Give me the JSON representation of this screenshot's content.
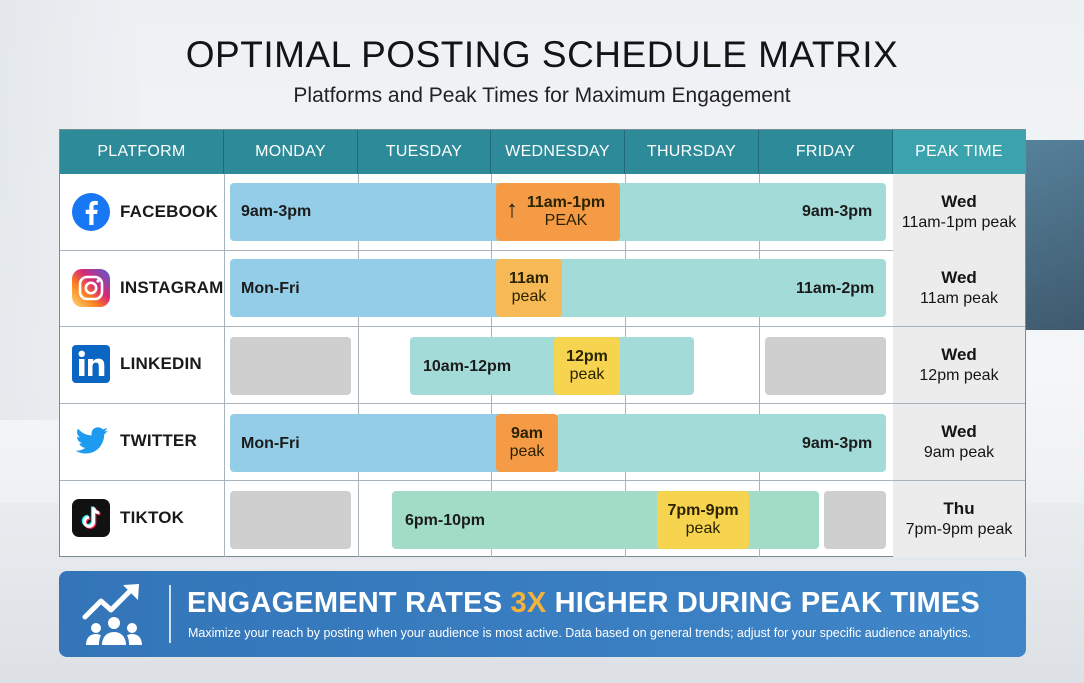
{
  "title": "OPTIMAL POSTING SCHEDULE MATRIX",
  "subtitle": "Platforms and Peak Times for Maximum Engagement",
  "headers": {
    "platform": "PLATFORM",
    "days": [
      "MONDAY",
      "TUESDAY",
      "WEDNESDAY",
      "THURSDAY",
      "FRIDAY"
    ],
    "peak": "PEAK TIME"
  },
  "rows": [
    {
      "name": "FACEBOOK",
      "icon": "facebook-icon",
      "left_label": "9am-3pm",
      "right_label": "9am-3pm",
      "peak_box": {
        "line1": "11am-1pm",
        "line2": "PEAK"
      },
      "peak_day": "Wed",
      "peak_time": "11am-1pm peak"
    },
    {
      "name": "INSTAGRAM",
      "icon": "instagram-icon",
      "left_label": "Mon-Fri",
      "right_label": "11am-2pm",
      "peak_box": {
        "line1": "11am",
        "line2": "peak"
      },
      "peak_day": "Wed",
      "peak_time": "11am peak"
    },
    {
      "name": "LINKEDIN",
      "icon": "linkedin-icon",
      "left_label": "10am-12pm",
      "peak_box": {
        "line1": "12pm",
        "line2": "peak"
      },
      "peak_day": "Wed",
      "peak_time": "12pm peak"
    },
    {
      "name": "TWITTER",
      "icon": "twitter-bird-icon",
      "left_label": "Mon-Fri",
      "right_label": "9am-3pm",
      "peak_box": {
        "line1": "9am",
        "line2": "peak"
      },
      "peak_day": "Wed",
      "peak_time": "9am peak"
    },
    {
      "name": "TIKTOK",
      "icon": "tiktok-icon",
      "left_label": "6pm-10pm",
      "peak_box": {
        "line1": "7pm-9pm",
        "line2": "peak"
      },
      "peak_day": "Thu",
      "peak_time": "7pm-9pm peak"
    }
  ],
  "banner": {
    "icon": "growth-chart-people-icon",
    "headline_pre": "ENGAGEMENT RATES ",
    "headline_accent": "3X",
    "headline_post": " HIGHER DURING PEAK TIMES",
    "subtext": "Maximize your reach by posting when your audience is most active. Data based on general trends; adjust for your specific audience analytics."
  },
  "colors": {
    "header_bg": "#2d8a99",
    "active_blue": "#93cde8",
    "active_teal": "#a3dbd8",
    "active_green": "#a2dcc6",
    "inactive_gray": "#cfcfcf",
    "peak_orange": "#f59b45",
    "peak_amber": "#f7b955",
    "peak_yellow": "#f6d44f",
    "banner_blue": "#3375b8",
    "banner_accent": "#f2b33d"
  },
  "chart_data": {
    "type": "table",
    "title": "OPTIMAL POSTING SCHEDULE MATRIX",
    "subtitle": "Platforms and Peak Times for Maximum Engagement",
    "columns": [
      "PLATFORM",
      "MONDAY",
      "TUESDAY",
      "WEDNESDAY",
      "THURSDAY",
      "FRIDAY",
      "PEAK TIME"
    ],
    "rows": [
      {
        "platform": "FACEBOOK",
        "active_days": [
          "MONDAY",
          "TUESDAY",
          "WEDNESDAY",
          "THURSDAY",
          "FRIDAY"
        ],
        "window": "9am-3pm",
        "peak_day": "WEDNESDAY",
        "peak": "11am-1pm"
      },
      {
        "platform": "INSTAGRAM",
        "active_days": [
          "MONDAY",
          "TUESDAY",
          "WEDNESDAY",
          "THURSDAY",
          "FRIDAY"
        ],
        "window": "11am-2pm",
        "peak_day": "WEDNESDAY",
        "peak": "11am"
      },
      {
        "platform": "LINKEDIN",
        "active_days": [
          "TUESDAY",
          "WEDNESDAY",
          "THURSDAY"
        ],
        "inactive_days": [
          "MONDAY",
          "FRIDAY"
        ],
        "window": "10am-12pm",
        "peak_day": "WEDNESDAY",
        "peak": "12pm"
      },
      {
        "platform": "TWITTER",
        "active_days": [
          "MONDAY",
          "TUESDAY",
          "WEDNESDAY",
          "THURSDAY",
          "FRIDAY"
        ],
        "window": "9am-3pm",
        "peak_day": "WEDNESDAY",
        "peak": "9am"
      },
      {
        "platform": "TIKTOK",
        "active_days": [
          "TUESDAY",
          "WEDNESDAY",
          "THURSDAY"
        ],
        "inactive_days": [
          "MONDAY",
          "FRIDAY"
        ],
        "window": "6pm-10pm",
        "peak_day": "THURSDAY",
        "peak": "7pm-9pm"
      }
    ]
  }
}
